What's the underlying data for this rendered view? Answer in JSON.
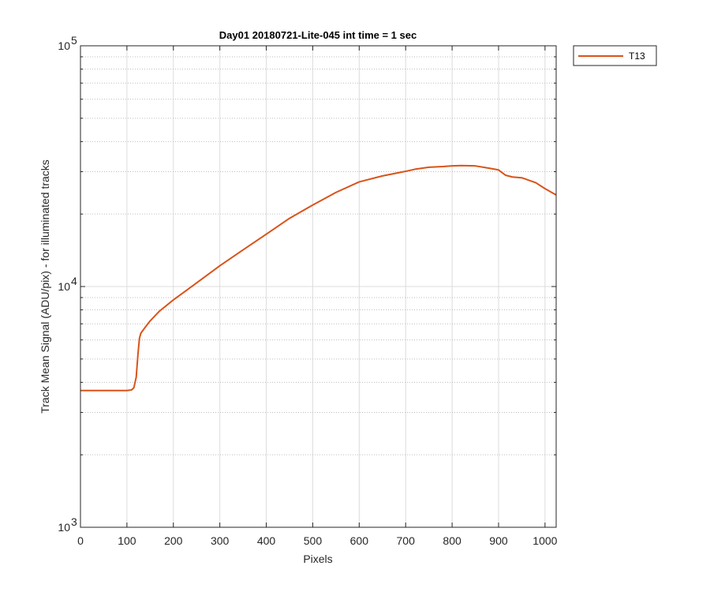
{
  "chart_data": {
    "type": "line",
    "title": "Day01 20180721-Lite-045 int time = 1 sec",
    "xlabel": "Pixels",
    "ylabel": "Track Mean Signal (ADU/pix) - for illuminated tracks",
    "xlim": [
      0,
      1024
    ],
    "ylim": [
      1000,
      100000
    ],
    "y_scale": "log",
    "x_ticks": [
      0,
      100,
      200,
      300,
      400,
      500,
      600,
      700,
      800,
      900,
      1000
    ],
    "y_ticks": [
      {
        "value": 1000,
        "base": "10",
        "exp": "3"
      },
      {
        "value": 10000,
        "base": "10",
        "exp": "4"
      },
      {
        "value": 100000,
        "base": "10",
        "exp": "5"
      }
    ],
    "grid": true,
    "minor_grid": true,
    "legend_position": "outside-top-right",
    "series": [
      {
        "name": "T13",
        "color": "#D95319",
        "x": [
          0,
          50,
          100,
          110,
          115,
          120,
          124,
          127,
          130,
          140,
          150,
          170,
          200,
          230,
          260,
          300,
          350,
          400,
          450,
          500,
          550,
          600,
          650,
          700,
          720,
          750,
          780,
          800,
          820,
          850,
          880,
          900,
          915,
          930,
          950,
          980,
          1000,
          1024
        ],
        "y": [
          3700,
          3700,
          3700,
          3720,
          3800,
          4200,
          5300,
          6100,
          6400,
          6800,
          7200,
          7900,
          8800,
          9700,
          10700,
          12200,
          14200,
          16500,
          19200,
          21800,
          24600,
          27200,
          28800,
          30100,
          30700,
          31300,
          31500,
          31700,
          31800,
          31700,
          31000,
          30500,
          29000,
          28500,
          28300,
          27000,
          25500,
          24000
        ]
      }
    ]
  }
}
